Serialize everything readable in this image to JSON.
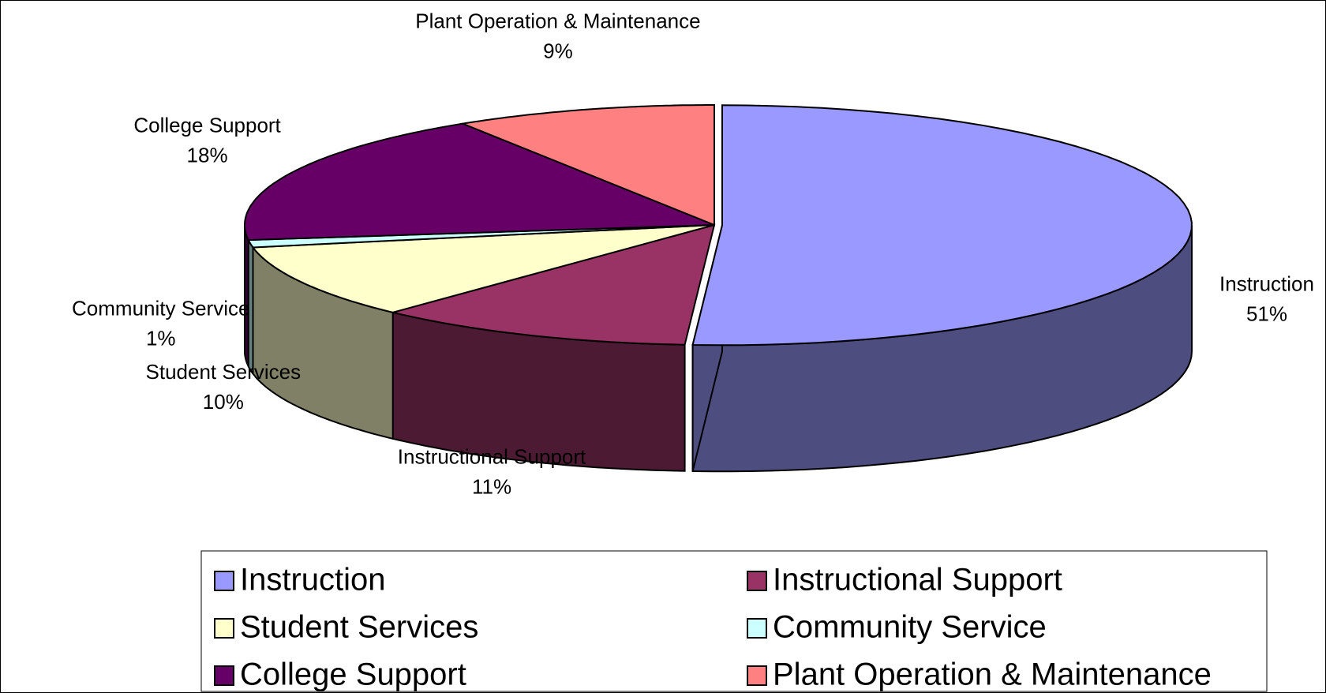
{
  "chart_data": {
    "type": "pie",
    "categories": [
      "Instruction",
      "Instructional Support",
      "Student Services",
      "Community Service",
      "College Support",
      "Plant Operation & Maintenance"
    ],
    "values": [
      51,
      11,
      10,
      1,
      18,
      9
    ],
    "value_labels": [
      "51%",
      "11%",
      "10%",
      "1%",
      "18%",
      "9%"
    ],
    "colors": [
      "#9999ff",
      "#993366",
      "#ffffcc",
      "#ccffff",
      "#660066",
      "#ff8080"
    ],
    "legend": "bottom"
  }
}
